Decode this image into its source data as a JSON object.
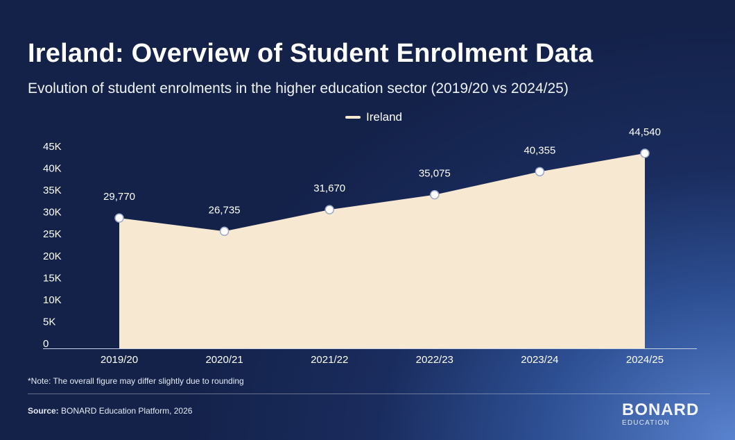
{
  "header": {
    "title": "Ireland: Overview of Student Enrolment Data",
    "subtitle": "Evolution of student enrolments in the higher education sector (2019/20 vs 2024/25)"
  },
  "chart_data": {
    "type": "area",
    "categories": [
      "2019/20",
      "2020/21",
      "2021/22",
      "2022/23",
      "2023/24",
      "2024/25"
    ],
    "series": [
      {
        "name": "Ireland",
        "values": [
          29770,
          26735,
          31670,
          35075,
          40355,
          44540
        ],
        "labels": [
          "29,770",
          "26,735",
          "31,670",
          "35,075",
          "40,355",
          "44,540"
        ]
      }
    ],
    "ylim": [
      0,
      45000
    ],
    "yticks": [
      0,
      5000,
      10000,
      15000,
      20000,
      25000,
      30000,
      35000,
      40000,
      45000
    ],
    "ytick_labels": [
      "0",
      "5K",
      "10K",
      "15K",
      "20K",
      "25K",
      "30K",
      "35K",
      "40K",
      "45K"
    ],
    "legend_position": "top-center",
    "grid": false,
    "colors": {
      "fill": "#f6e8d1",
      "marker": "#ffffff",
      "axis": "#c7d2ea"
    }
  },
  "footer": {
    "note": "*Note:  The overall figure may differ slightly due to rounding",
    "source_label": "Source:",
    "source_text": " BONARD Education Platform, 2026",
    "logo_main": "BONARD",
    "logo_sub": "EDUCATION"
  }
}
